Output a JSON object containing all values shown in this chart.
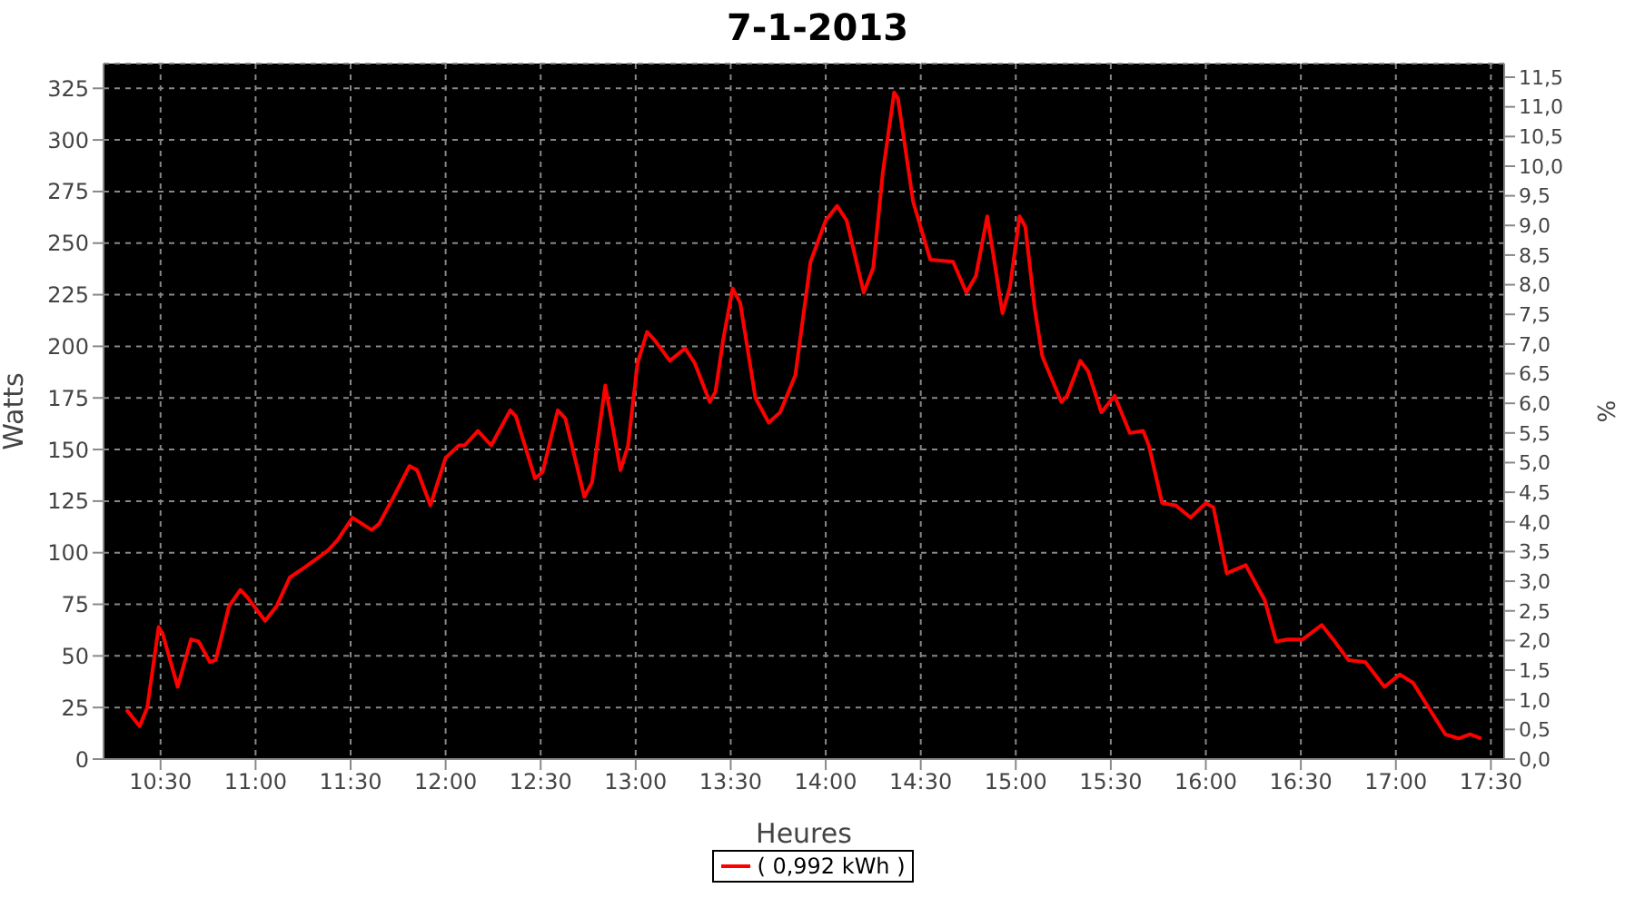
{
  "chart_data": {
    "type": "line",
    "title": "7-1-2013",
    "xlabel": "Heures",
    "ylabel": "Watts",
    "y2label": "%",
    "xlim": [
      10.2,
      17.57
    ],
    "xticks": [
      {
        "value": 10.5,
        "label": "10:30"
      },
      {
        "value": 11,
        "label": "11:00"
      },
      {
        "value": 11.5,
        "label": "11:30"
      },
      {
        "value": 12,
        "label": "12:00"
      },
      {
        "value": 12.5,
        "label": "12:30"
      },
      {
        "value": 13,
        "label": "13:00"
      },
      {
        "value": 13.5,
        "label": "13:30"
      },
      {
        "value": 14,
        "label": "14:00"
      },
      {
        "value": 14.5,
        "label": "14:30"
      },
      {
        "value": 15,
        "label": "15:00"
      },
      {
        "value": 15.5,
        "label": "15:30"
      },
      {
        "value": 16,
        "label": "16:00"
      },
      {
        "value": 16.5,
        "label": "16:30"
      },
      {
        "value": 17,
        "label": "17:00"
      },
      {
        "value": 17.5,
        "label": "17:30"
      }
    ],
    "ylim": [
      0,
      337
    ],
    "yticks": [
      0,
      25,
      50,
      75,
      100,
      125,
      150,
      175,
      200,
      225,
      250,
      275,
      300,
      325
    ],
    "y2lim": [
      0,
      11.73
    ],
    "y2ticks": [
      {
        "value": 0,
        "label": "0,0"
      },
      {
        "value": 0.5,
        "label": "0,5"
      },
      {
        "value": 1,
        "label": "1,0"
      },
      {
        "value": 1.5,
        "label": "1,5"
      },
      {
        "value": 2,
        "label": "2,0"
      },
      {
        "value": 2.5,
        "label": "2,5"
      },
      {
        "value": 3,
        "label": "3,0"
      },
      {
        "value": 3.5,
        "label": "3,5"
      },
      {
        "value": 4,
        "label": "4,0"
      },
      {
        "value": 4.5,
        "label": "4,5"
      },
      {
        "value": 5,
        "label": "5,0"
      },
      {
        "value": 5.5,
        "label": "5,5"
      },
      {
        "value": 6,
        "label": "6,0"
      },
      {
        "value": 6.5,
        "label": "6,5"
      },
      {
        "value": 7,
        "label": "7,0"
      },
      {
        "value": 7.5,
        "label": "7,5"
      },
      {
        "value": 8,
        "label": "8,0"
      },
      {
        "value": 8.5,
        "label": "8,5"
      },
      {
        "value": 9,
        "label": "9,0"
      },
      {
        "value": 9.5,
        "label": "9,5"
      },
      {
        "value": 10,
        "label": "10,0"
      },
      {
        "value": 10.5,
        "label": "10,5"
      },
      {
        "value": 11,
        "label": "11,0"
      },
      {
        "value": 11.5,
        "label": "11,5"
      }
    ],
    "grid": true,
    "legend": "bottom",
    "marker": "none",
    "line_style": "solid",
    "series": [
      {
        "name": "( 0,992 kWh )",
        "color": "#ff0000",
        "x": [
          10.32,
          10.39,
          10.43,
          10.49,
          10.51,
          10.59,
          10.66,
          10.7,
          10.76,
          10.79,
          10.86,
          10.92,
          10.96,
          11.05,
          11.11,
          11.18,
          11.26,
          11.38,
          11.43,
          11.51,
          11.61,
          11.65,
          11.72,
          11.81,
          11.85,
          11.92,
          12.0,
          12.07,
          12.1,
          12.17,
          12.24,
          12.34,
          12.37,
          12.47,
          12.51,
          12.59,
          12.63,
          12.73,
          12.77,
          12.84,
          12.92,
          12.96,
          13.01,
          13.06,
          13.1,
          13.18,
          13.26,
          13.31,
          13.39,
          13.42,
          13.46,
          13.51,
          13.55,
          13.63,
          13.7,
          13.76,
          13.84,
          13.92,
          14.0,
          14.06,
          14.11,
          14.2,
          14.25,
          14.3,
          14.36,
          14.38,
          14.46,
          14.55,
          14.67,
          14.74,
          14.79,
          14.85,
          14.93,
          14.97,
          15.02,
          15.05,
          15.1,
          15.14,
          15.24,
          15.27,
          15.34,
          15.38,
          15.45,
          15.52,
          15.6,
          15.67,
          15.7,
          15.77,
          15.84,
          15.92,
          16.0,
          16.04,
          16.11,
          16.21,
          16.31,
          16.37,
          16.43,
          16.51,
          16.61,
          16.67,
          16.75,
          16.84,
          16.94,
          17.02,
          17.09,
          17.26,
          17.33,
          17.39,
          17.45
        ],
        "values": [
          24,
          16,
          25,
          64,
          61,
          35,
          58,
          57,
          47,
          48,
          74,
          82,
          78,
          67,
          74,
          88,
          93,
          101,
          106,
          117,
          111,
          114,
          126,
          142,
          140,
          123,
          146,
          152,
          152,
          159,
          152,
          169,
          166,
          136,
          139,
          169,
          165,
          127,
          134,
          181,
          140,
          152,
          192,
          207,
          203,
          193,
          199,
          192,
          173,
          178,
          203,
          228,
          221,
          175,
          163,
          168,
          186,
          241,
          261,
          268,
          261,
          226,
          238,
          284,
          323,
          320,
          270,
          242,
          241,
          226,
          234,
          263,
          216,
          229,
          263,
          258,
          218,
          195,
          173,
          176,
          193,
          188,
          168,
          176,
          158,
          159,
          152,
          124,
          123,
          117,
          124,
          122,
          90,
          94,
          77,
          57,
          58,
          58,
          65,
          58,
          48,
          47,
          35,
          41,
          37,
          12,
          10,
          12,
          10
        ]
      }
    ]
  }
}
